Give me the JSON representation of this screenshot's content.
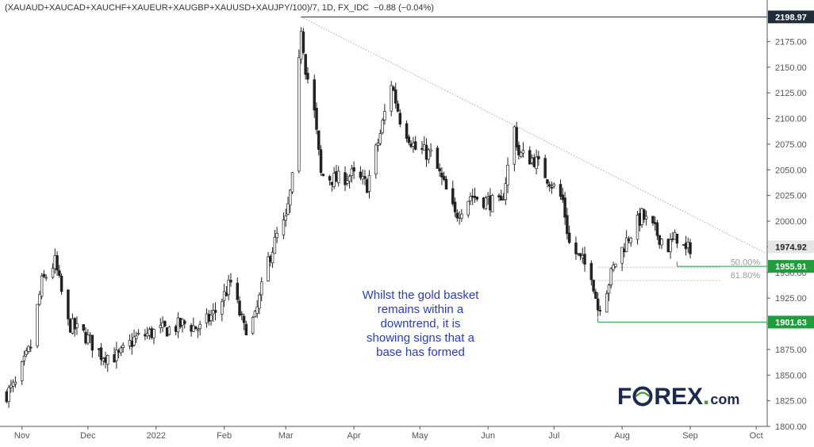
{
  "header": {
    "symbol": "(XAUAUD+XAUCAD+XAUCHF+XAUEUR+XAUGBP+XAUUSD+XAUJPY/100)/7, 1D, FX_IDC",
    "change": "−0.88 (−0.04%)"
  },
  "annotation_lines": [
    "Whilst the gold basket",
    "remains within a",
    "downtrend, it is",
    "showing signs that a",
    "base has formed"
  ],
  "logo": {
    "part1": "F",
    "part2": "REX",
    "part3": "com",
    "dot": "."
  },
  "colors": {
    "up": "#26a69a",
    "down": "#222222",
    "wick": "#222222",
    "green_line": "#1e9e3a",
    "badge_dark": "#1f2d3d",
    "trend": "#aaaaaa"
  },
  "chart_data": {
    "type": "candlestick",
    "title": "(XAUAUD+XAUCAD+XAUCHF+XAUEUR+XAUGBP+XAUUSD+XAUJPY/100)/7, 1D, FX_IDC",
    "ylim": [
      1800,
      2200
    ],
    "y_ticks": [
      1800,
      1825,
      1850,
      1875,
      1900,
      1925,
      1950,
      1975,
      2000,
      2025,
      2050,
      2075,
      2100,
      2125,
      2150,
      2175
    ],
    "x_range": [
      "2021-10-22",
      "2022-10-06"
    ],
    "x_ticks": [
      {
        "label": "Nov",
        "date": "2021-11-01"
      },
      {
        "label": "Dec",
        "date": "2021-12-01"
      },
      {
        "label": "2022",
        "date": "2022-01-01"
      },
      {
        "label": "Feb",
        "date": "2022-02-01"
      },
      {
        "label": "Mar",
        "date": "2022-03-01"
      },
      {
        "label": "Apr",
        "date": "2022-04-01"
      },
      {
        "label": "May",
        "date": "2022-05-01"
      },
      {
        "label": "Jun",
        "date": "2022-06-01"
      },
      {
        "label": "Jul",
        "date": "2022-07-01"
      },
      {
        "label": "Aug",
        "date": "2022-08-01"
      },
      {
        "label": "Sep",
        "date": "2022-09-01"
      },
      {
        "label": "Oct",
        "date": "2022-10-01"
      }
    ],
    "closes_path": [
      [
        "2021-10-25",
        1832
      ],
      [
        "2021-10-29",
        1840
      ],
      [
        "2021-11-05",
        1878
      ],
      [
        "2021-11-10",
        1940
      ],
      [
        "2021-11-16",
        1960
      ],
      [
        "2021-11-22",
        1900
      ],
      [
        "2021-11-30",
        1888
      ],
      [
        "2021-12-07",
        1870
      ],
      [
        "2021-12-15",
        1868
      ],
      [
        "2021-12-22",
        1885
      ],
      [
        "2021-12-31",
        1892
      ],
      [
        "2022-01-07",
        1895
      ],
      [
        "2022-01-14",
        1900
      ],
      [
        "2022-01-21",
        1895
      ],
      [
        "2022-01-28",
        1912
      ],
      [
        "2022-02-04",
        1940
      ],
      [
        "2022-02-10",
        1895
      ],
      [
        "2022-02-15",
        1905
      ],
      [
        "2022-02-21",
        1962
      ],
      [
        "2022-02-25",
        1985
      ],
      [
        "2022-03-01",
        2000
      ],
      [
        "2022-03-04",
        2040
      ],
      [
        "2022-03-08",
        2190
      ],
      [
        "2022-03-10",
        2150
      ],
      [
        "2022-03-14",
        2105
      ],
      [
        "2022-03-17",
        2045
      ],
      [
        "2022-03-24",
        2040
      ],
      [
        "2022-03-31",
        2045
      ],
      [
        "2022-04-07",
        2035
      ],
      [
        "2022-04-13",
        2085
      ],
      [
        "2022-04-18",
        2135
      ],
      [
        "2022-04-22",
        2100
      ],
      [
        "2022-04-29",
        2070
      ],
      [
        "2022-05-06",
        2065
      ],
      [
        "2022-05-12",
        2035
      ],
      [
        "2022-05-17",
        2005
      ],
      [
        "2022-05-24",
        2025
      ],
      [
        "2022-05-31",
        2020
      ],
      [
        "2022-06-07",
        2015
      ],
      [
        "2022-06-13",
        2090
      ],
      [
        "2022-06-15",
        2065
      ],
      [
        "2022-06-22",
        2060
      ],
      [
        "2022-06-29",
        2040
      ],
      [
        "2022-07-05",
        2020
      ],
      [
        "2022-07-08",
        1978
      ],
      [
        "2022-07-13",
        1962
      ],
      [
        "2022-07-18",
        1950
      ],
      [
        "2022-07-21",
        1915
      ],
      [
        "2022-07-25",
        1935
      ],
      [
        "2022-07-29",
        1960
      ],
      [
        "2022-08-04",
        1985
      ],
      [
        "2022-08-10",
        2005
      ],
      [
        "2022-08-16",
        1990
      ],
      [
        "2022-08-22",
        1975
      ],
      [
        "2022-08-26",
        1985
      ],
      [
        "2022-08-30",
        1970
      ],
      [
        "2022-09-01",
        1975
      ]
    ],
    "trendline": {
      "from": [
        "2022-03-08",
        2198.97
      ],
      "to": [
        "2022-10-06",
        1968
      ]
    },
    "levels": [
      {
        "label": "2198.97",
        "value": 2198.97,
        "style": "dark",
        "from": "2022-03-08"
      },
      {
        "label": "1974.92",
        "value": 1974.92,
        "style": "gray"
      },
      {
        "label": "1955.91",
        "value": 1955.91,
        "style": "green",
        "from": "2022-08-26"
      },
      {
        "label": "1901.63",
        "value": 1901.63,
        "style": "green",
        "from": "2022-07-21"
      }
    ],
    "fib_levels": [
      {
        "label": "50.00%",
        "value": 1955
      },
      {
        "label": "61.80%",
        "value": 1942
      }
    ]
  }
}
